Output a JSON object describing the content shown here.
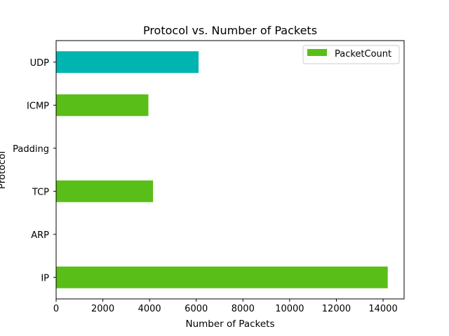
{
  "chart_data": {
    "type": "bar",
    "orientation": "horizontal",
    "title": "Protocol vs. Number of Packets",
    "xlabel": "Number of Packets",
    "ylabel": "Protocol",
    "xlim": [
      0,
      14900
    ],
    "xticks": [
      0,
      2000,
      4000,
      6000,
      8000,
      10000,
      12000,
      14000
    ],
    "categories": [
      "IP",
      "ARP",
      "TCP",
      "Padding",
      "ICMP",
      "UDP"
    ],
    "series": [
      {
        "name": "PacketCount",
        "values": [
          14200,
          0,
          4150,
          0,
          3950,
          6100
        ],
        "color": "#5abe18",
        "bar_colors": [
          "#5abe18",
          "#5abe18",
          "#5abe18",
          "#5abe18",
          "#5abe18",
          "#00b4af"
        ]
      }
    ],
    "legend": {
      "position": "top-right",
      "labels": [
        "PacketCount"
      ]
    },
    "grid": false
  }
}
